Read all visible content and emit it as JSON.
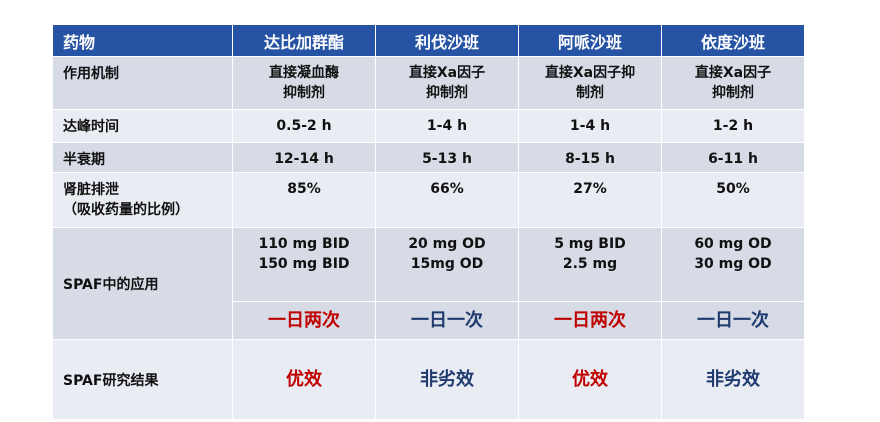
{
  "colors": {
    "header_bg": "#2653a3",
    "row_dark": "#d6dbe6",
    "row_light": "#e9ecf3",
    "red": "#c00000",
    "navy": "#1f3a6e"
  },
  "header": [
    "药物",
    "达比加群酯",
    "利伐沙班",
    "阿哌沙班",
    "依度沙班"
  ],
  "rows": {
    "mechanism": {
      "label": "作用机制",
      "values": [
        [
          "直接凝血酶",
          "抑制剂"
        ],
        [
          "直接Xa因子",
          "抑制剂"
        ],
        [
          "直接Xa因子抑",
          "制剂"
        ],
        [
          "直接Xa因子",
          "抑制剂"
        ]
      ]
    },
    "peak": {
      "label": "达峰时间",
      "values": [
        "0.5-2 h",
        "1-4 h",
        "1-4 h",
        "1-2 h"
      ]
    },
    "halflife": {
      "label": "半衰期",
      "values": [
        "12-14 h",
        "5-13 h",
        "8-15 h",
        "6-11 h"
      ]
    },
    "renal": {
      "label": [
        "肾脏排泄",
        "（吸收药量的比例）"
      ],
      "values": [
        "85%",
        "66%",
        "27%",
        "50%"
      ]
    },
    "spaf": {
      "label": "SPAF中的应用",
      "doses": [
        [
          "110 mg BID",
          "150 mg BID"
        ],
        [
          "20 mg OD",
          "15mg OD"
        ],
        [
          "5 mg BID",
          "2.5 mg"
        ],
        [
          "60 mg OD",
          "30 mg OD"
        ]
      ],
      "frequency": [
        "一日两次",
        "一日一次",
        "一日两次",
        "一日一次"
      ]
    },
    "results": {
      "label": "SPAF研究结果",
      "values": [
        "优效",
        "非劣效",
        "优效",
        "非劣效"
      ]
    }
  }
}
